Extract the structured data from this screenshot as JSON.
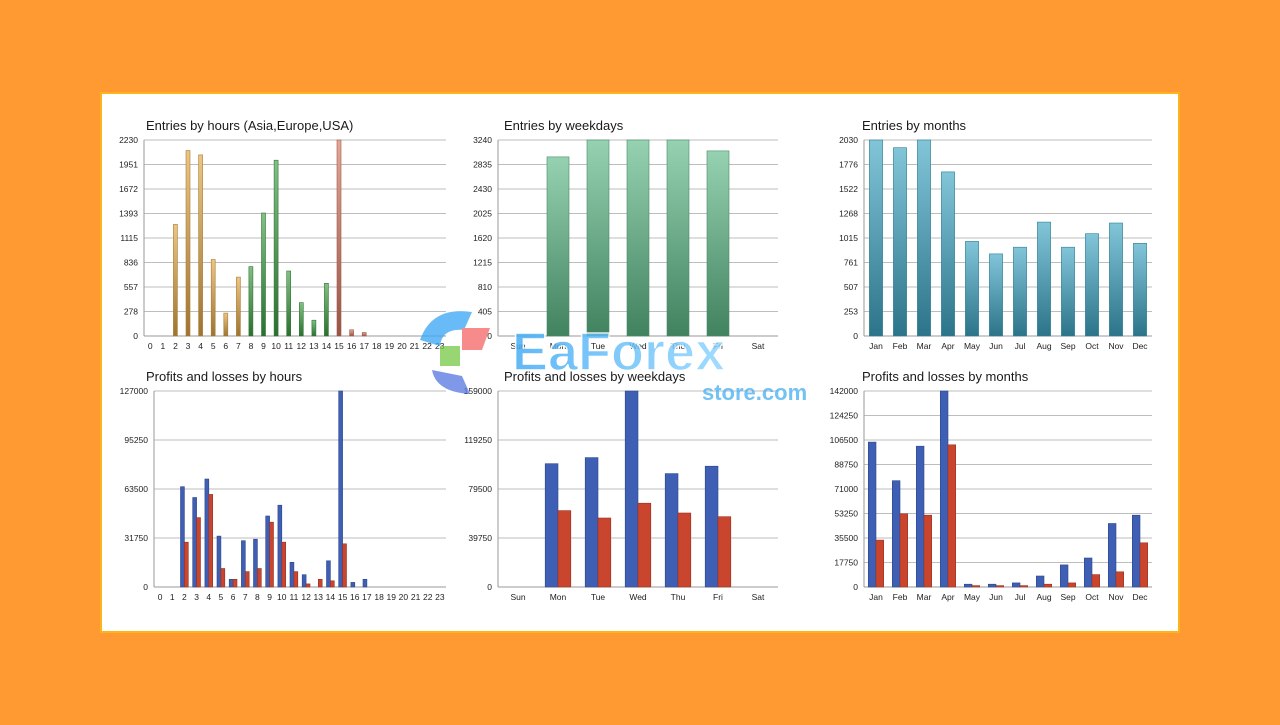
{
  "watermark": {
    "line1": "EaForex",
    "line2": "store.com"
  },
  "chart_data": [
    {
      "id": "c1",
      "type": "bar",
      "title": "Entries by hours (Asia,Europe,USA)",
      "categories": [
        "0",
        "1",
        "2",
        "3",
        "4",
        "5",
        "6",
        "7",
        "8",
        "9",
        "10",
        "11",
        "12",
        "13",
        "14",
        "15",
        "16",
        "17",
        "18",
        "19",
        "20",
        "21",
        "22",
        "23"
      ],
      "yticks": [
        "0",
        "278",
        "557",
        "836",
        "1115",
        "1393",
        "1672",
        "1951",
        "2230"
      ],
      "ylim": [
        0,
        2230
      ],
      "series": [
        {
          "values": [
            0,
            0,
            1270,
            2110,
            2060,
            870,
            260,
            670,
            0,
            0,
            0,
            0,
            0,
            0,
            0,
            0,
            0,
            0,
            0,
            0,
            0,
            0,
            0,
            0
          ],
          "color": "#E1A644"
        },
        {
          "values": [
            0,
            0,
            0,
            0,
            0,
            0,
            0,
            0,
            790,
            1400,
            2000,
            740,
            380,
            180,
            600,
            0,
            0,
            0,
            0,
            0,
            0,
            0,
            0,
            0
          ],
          "color": "#3E9E44"
        },
        {
          "values": [
            0,
            0,
            0,
            0,
            0,
            0,
            0,
            0,
            0,
            0,
            0,
            0,
            0,
            0,
            0,
            2230,
            70,
            40,
            0,
            0,
            0,
            0,
            0,
            0
          ],
          "color": "#D77860"
        }
      ]
    },
    {
      "id": "c2",
      "type": "bar",
      "title": "Entries by weekdays",
      "categories": [
        "Sun",
        "Mon",
        "Tue",
        "Wed",
        "Thu",
        "Fri",
        "Sat"
      ],
      "yticks": [
        "0",
        "405",
        "810",
        "1215",
        "1620",
        "2025",
        "2430",
        "2835",
        "3240"
      ],
      "ylim": [
        0,
        3240
      ],
      "series": [
        {
          "values": [
            0,
            2960,
            3240,
            3240,
            3240,
            3060,
            0
          ],
          "color": "#5DBA87"
        }
      ]
    },
    {
      "id": "c3",
      "type": "bar",
      "title": "Entries by months",
      "categories": [
        "Jan",
        "Feb",
        "Mar",
        "Apr",
        "May",
        "Jun",
        "Jul",
        "Aug",
        "Sep",
        "Oct",
        "Nov",
        "Dec"
      ],
      "yticks": [
        "0",
        "253",
        "507",
        "761",
        "1015",
        "1268",
        "1522",
        "1776",
        "2030"
      ],
      "ylim": [
        0,
        2030
      ],
      "series": [
        {
          "values": [
            2030,
            1950,
            2030,
            1700,
            980,
            850,
            920,
            1180,
            920,
            1060,
            1170,
            960
          ],
          "color": "#3FA6C4"
        }
      ]
    },
    {
      "id": "c4",
      "type": "bar",
      "title": "Profits and losses by hours",
      "categories": [
        "0",
        "1",
        "2",
        "3",
        "4",
        "5",
        "6",
        "7",
        "8",
        "9",
        "10",
        "11",
        "12",
        "13",
        "14",
        "15",
        "16",
        "17",
        "18",
        "19",
        "20",
        "21",
        "22",
        "23"
      ],
      "yticks": [
        "0",
        "31750",
        "63500",
        "95250",
        "127000"
      ],
      "ylim": [
        0,
        127000
      ],
      "series": [
        {
          "values": [
            0,
            0,
            65000,
            58000,
            70000,
            33000,
            5000,
            30000,
            31000,
            46000,
            53000,
            16000,
            8000,
            0,
            17000,
            127000,
            3000,
            5000,
            0,
            0,
            0,
            0,
            0,
            0
          ],
          "color": "#3F5FB5"
        },
        {
          "values": [
            0,
            0,
            29000,
            45000,
            60000,
            12000,
            5000,
            10000,
            12000,
            42000,
            29000,
            10000,
            2000,
            5000,
            4000,
            28000,
            0,
            0,
            0,
            0,
            0,
            0,
            0,
            0
          ],
          "color": "#C9452E"
        }
      ]
    },
    {
      "id": "c5",
      "type": "bar",
      "title": "Profits and losses by weekdays",
      "categories": [
        "Sun",
        "Mon",
        "Tue",
        "Wed",
        "Thu",
        "Fri",
        "Sat"
      ],
      "yticks": [
        "0",
        "39750",
        "79500",
        "119250",
        "159000"
      ],
      "ylim": [
        0,
        159000
      ],
      "series": [
        {
          "values": [
            0,
            100000,
            105000,
            159000,
            92000,
            98000,
            0
          ],
          "color": "#3F5FB5"
        },
        {
          "values": [
            0,
            62000,
            56000,
            68000,
            60000,
            57000,
            0
          ],
          "color": "#C9452E"
        }
      ]
    },
    {
      "id": "c6",
      "type": "bar",
      "title": "Profits and losses by months",
      "categories": [
        "Jan",
        "Feb",
        "Mar",
        "Apr",
        "May",
        "Jun",
        "Jul",
        "Aug",
        "Sep",
        "Oct",
        "Nov",
        "Dec"
      ],
      "yticks": [
        "0",
        "17750",
        "35500",
        "53250",
        "71000",
        "88750",
        "106500",
        "124250",
        "142000"
      ],
      "ylim": [
        0,
        142000
      ],
      "series": [
        {
          "values": [
            105000,
            77000,
            102000,
            142000,
            2000,
            2000,
            3000,
            8000,
            16000,
            21000,
            46000,
            52000
          ],
          "color": "#3F5FB5"
        },
        {
          "values": [
            34000,
            53000,
            52000,
            103000,
            1000,
            1000,
            1000,
            2000,
            3000,
            9000,
            11000,
            32000
          ],
          "color": "#C9452E"
        }
      ]
    }
  ]
}
